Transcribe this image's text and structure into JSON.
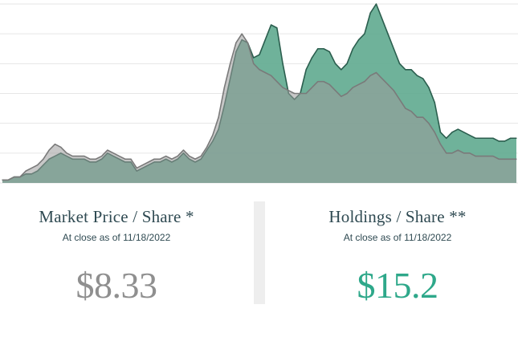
{
  "chart_data": {
    "type": "area",
    "title": "",
    "xlabel": "",
    "ylabel": "",
    "ylim": [
      0,
      60
    ],
    "grid": "horizontal",
    "series": [
      {
        "key": "holdings",
        "color": "#5faa8f",
        "line_color": "#2b5e4e",
        "values": [
          1,
          1,
          2,
          2,
          3,
          3,
          4,
          6,
          8,
          9,
          10,
          9,
          8,
          8,
          8,
          7,
          7,
          8,
          10,
          9,
          8,
          7,
          7,
          4,
          5,
          6,
          7,
          7,
          8,
          7,
          8,
          10,
          8,
          7,
          8,
          11,
          14,
          18,
          26,
          35,
          44,
          48,
          47,
          42,
          43,
          48,
          53,
          52,
          40,
          30,
          28,
          30,
          38,
          42,
          45,
          45,
          44,
          40,
          38,
          40,
          45,
          48,
          50,
          57,
          60,
          55,
          50,
          45,
          40,
          38,
          38,
          36,
          35,
          32,
          27,
          17,
          15,
          17,
          18,
          17,
          16,
          15,
          15,
          15,
          15,
          14,
          14,
          15,
          15
        ]
      },
      {
        "key": "market",
        "color": "#9b9b9b",
        "line_color": "#7a7a7a",
        "values": [
          1,
          1,
          2,
          2,
          4,
          5,
          6,
          8,
          11,
          13,
          12,
          10,
          9,
          9,
          9,
          8,
          8,
          9,
          11,
          10,
          9,
          8,
          8,
          5,
          6,
          7,
          8,
          8,
          9,
          8,
          9,
          11,
          9,
          8,
          9,
          12,
          16,
          22,
          32,
          40,
          47,
          50,
          47,
          40,
          38,
          37,
          36,
          34,
          32,
          31,
          30,
          30,
          30,
          32,
          34,
          34,
          33,
          31,
          29,
          30,
          32,
          33,
          34,
          36,
          37,
          35,
          33,
          31,
          28,
          25,
          24,
          22,
          22,
          20,
          17,
          13,
          10,
          10,
          11,
          10,
          10,
          9,
          9,
          9,
          9,
          8,
          8,
          8,
          8
        ]
      }
    ]
  },
  "market": {
    "label": "Market Price / Share *",
    "sub": "At close as of 11/18/2022",
    "value": "$8.33",
    "color": "#8f8f8f"
  },
  "holdings": {
    "label": "Holdings / Share **",
    "sub": "At close as of 11/18/2022",
    "value": "$15.2",
    "color": "#2ea88a"
  }
}
